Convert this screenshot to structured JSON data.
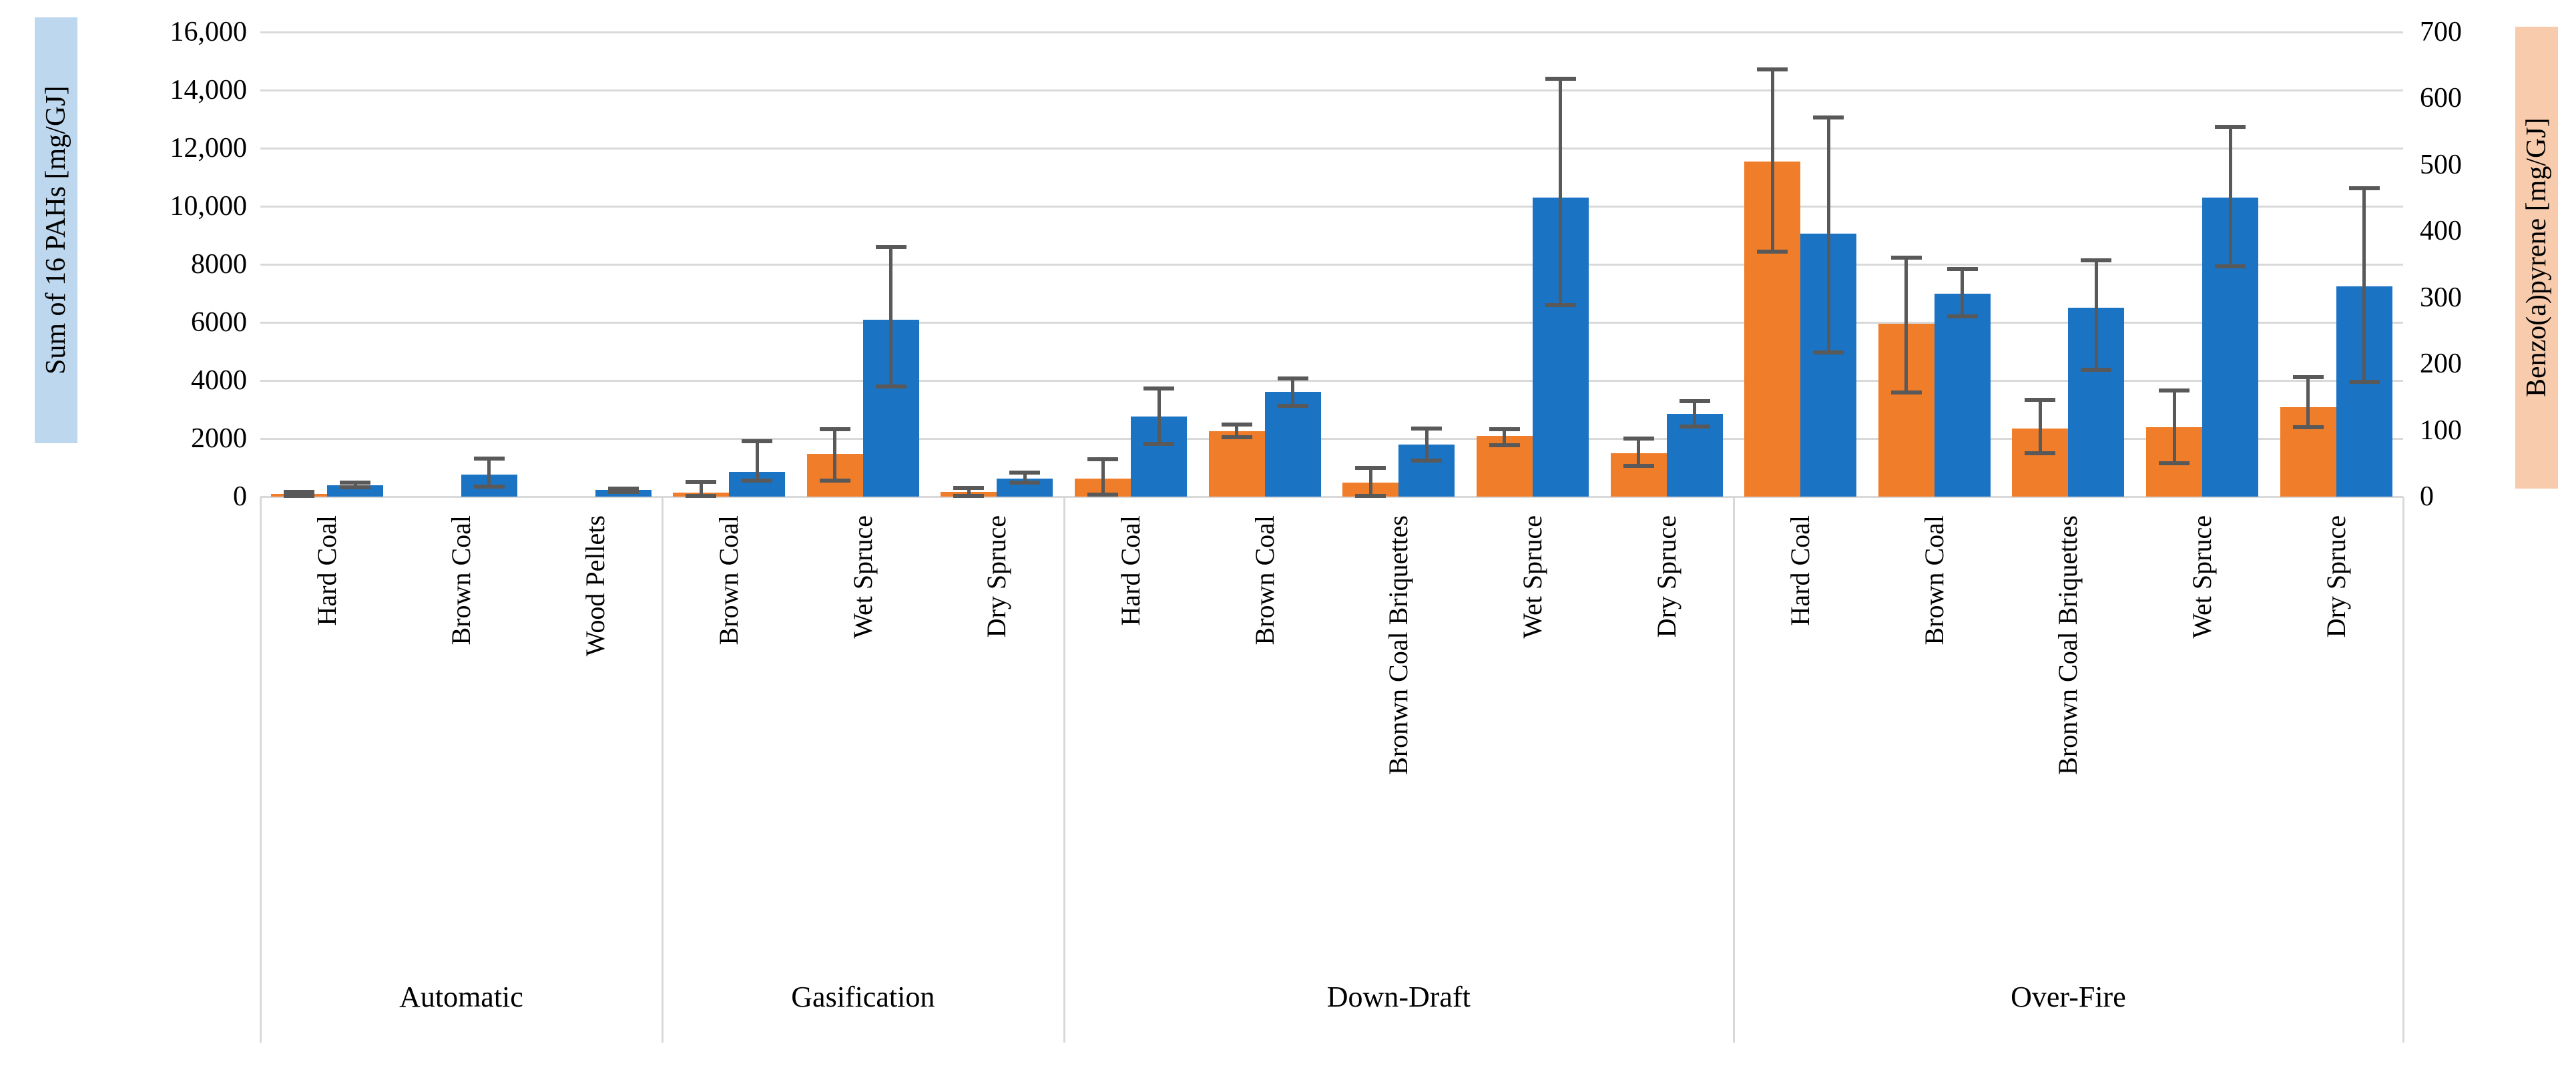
{
  "chart_data": {
    "type": "bar",
    "title": "",
    "ylabel_left": "Sum of 16 PAHs [mg/GJ]",
    "ylabel_right": "Benzo(a)pyrene [mg/GJ]",
    "ylim_left": [
      0,
      16000
    ],
    "ylim_right": [
      0,
      700
    ],
    "grid": "horizontal",
    "legend": "none",
    "left_tick_labels": [
      "16,000",
      "14,000",
      "12,000",
      "10,000",
      "8000",
      "6000",
      "4000",
      "2000",
      "0"
    ],
    "right_tick_labels": [
      "700",
      "600",
      "500",
      "400",
      "300",
      "200",
      "100",
      "0"
    ],
    "series_meta": [
      {
        "name": "Benzo(a)pyrene [mg/GJ]",
        "axis": "right",
        "color": "#f07d2a",
        "key": "bap"
      },
      {
        "name": "Sum of 16 PAHs [mg/GJ]",
        "axis": "left",
        "color": "#1b73c4",
        "key": "pah"
      }
    ],
    "error_bar_color": "#595959",
    "gridline_color": "#d9d9d9",
    "left_label_highlight": "#bdd7ee",
    "right_label_highlight": "#f8cbad",
    "groups": [
      {
        "name": "Automatic",
        "items": [
          {
            "category": "Hard Coal",
            "bap": 4,
            "bap_plus": 3,
            "bap_minus": 3,
            "pah": 400,
            "pah_plus": 75,
            "pah_minus": 80
          },
          {
            "category": "Brown Coal",
            "bap": 0,
            "bap_plus": 0,
            "bap_minus": 0,
            "pah": 760,
            "pah_plus": 550,
            "pah_minus": 420
          },
          {
            "category": "Wood Pellets",
            "bap": 0,
            "bap_plus": 0,
            "bap_minus": 0,
            "pah": 220,
            "pah_plus": 55,
            "pah_minus": 55
          }
        ]
      },
      {
        "name": "Gasification",
        "items": [
          {
            "category": "Brown Coal",
            "bap": 6,
            "bap_plus": 16,
            "bap_minus": 5,
            "pah": 850,
            "pah_plus": 1050,
            "pah_minus": 300
          },
          {
            "category": "Wet Spruce",
            "bap": 64,
            "bap_plus": 38,
            "bap_minus": 40,
            "pah": 6100,
            "pah_plus": 2500,
            "pah_minus": 2300
          },
          {
            "category": "Dry Spruce",
            "bap": 7,
            "bap_plus": 6,
            "bap_minus": 6,
            "pah": 630,
            "pah_plus": 190,
            "pah_minus": 155
          }
        ]
      },
      {
        "name": "Down-Draft",
        "items": [
          {
            "category": "Hard Coal",
            "bap": 27,
            "bap_plus": 29,
            "bap_minus": 24,
            "pah": 2750,
            "pah_plus": 985,
            "pah_minus": 945
          },
          {
            "category": "Brown Coal",
            "bap": 99,
            "bap_plus": 10,
            "bap_minus": 9,
            "pah": 3600,
            "pah_plus": 480,
            "pah_minus": 480
          },
          {
            "category": "Bronwn Coal Briquettes",
            "bap": 21,
            "bap_plus": 22,
            "bap_minus": 20,
            "pah": 1800,
            "pah_plus": 550,
            "pah_minus": 550
          },
          {
            "category": "Wet Spruce",
            "bap": 92,
            "bap_plus": 10,
            "bap_minus": 15,
            "pah": 10300,
            "pah_plus": 4100,
            "pah_minus": 3700
          },
          {
            "category": "Dry Spruce",
            "bap": 65,
            "bap_plus": 22,
            "bap_minus": 19,
            "pah": 2850,
            "pah_plus": 445,
            "pah_minus": 425
          }
        ]
      },
      {
        "name": "Over-Fire",
        "items": [
          {
            "category": "Hard Coal",
            "bap": 505,
            "bap_plus": 139,
            "bap_minus": 136,
            "pah": 9050,
            "pah_plus": 4000,
            "pah_minus": 4080
          },
          {
            "category": "Brown Coal",
            "bap": 260,
            "bap_plus": 100,
            "bap_minus": 103,
            "pah": 7000,
            "pah_plus": 845,
            "pah_minus": 795
          },
          {
            "category": "Bronwn Coal Briquettes",
            "bap": 103,
            "bap_plus": 43,
            "bap_minus": 38,
            "pah": 6500,
            "pah_plus": 1630,
            "pah_minus": 2140
          },
          {
            "category": "Wet Spruce",
            "bap": 105,
            "bap_plus": 55,
            "bap_minus": 55,
            "pah": 10300,
            "pah_plus": 2440,
            "pah_minus": 2370
          },
          {
            "category": "Dry Spruce",
            "bap": 135,
            "bap_plus": 45,
            "bap_minus": 30,
            "pah": 7250,
            "pah_plus": 3380,
            "pah_minus": 3300
          }
        ]
      }
    ]
  }
}
